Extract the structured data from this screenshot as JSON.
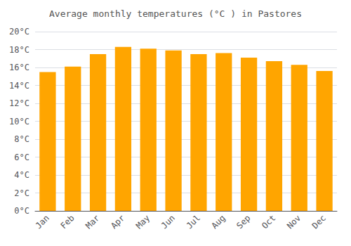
{
  "chart_data": {
    "type": "bar",
    "title": "Average monthly temperatures (°C ) in Pastores",
    "categories": [
      "Jan",
      "Feb",
      "Mar",
      "Apr",
      "May",
      "Jun",
      "Jul",
      "Aug",
      "Sep",
      "Oct",
      "Nov",
      "Dec"
    ],
    "values": [
      15.5,
      16.1,
      17.5,
      18.3,
      18.1,
      17.9,
      17.5,
      17.6,
      17.1,
      16.7,
      16.3,
      15.6
    ],
    "color": "#FFA500",
    "ylim": [
      0,
      20
    ],
    "yticks": [
      {
        "value": 0,
        "label": "0°C"
      },
      {
        "value": 2,
        "label": "2°C"
      },
      {
        "value": 4,
        "label": "4°C"
      },
      {
        "value": 6,
        "label": "6°C"
      },
      {
        "value": 8,
        "label": "8°C"
      },
      {
        "value": 10,
        "label": "10°C"
      },
      {
        "value": 12,
        "label": "12°C"
      },
      {
        "value": 14,
        "label": "14°C"
      },
      {
        "value": 16,
        "label": "16°C"
      },
      {
        "value": 18,
        "label": "18°C"
      },
      {
        "value": 20,
        "label": "20°C"
      }
    ],
    "grid": true
  }
}
